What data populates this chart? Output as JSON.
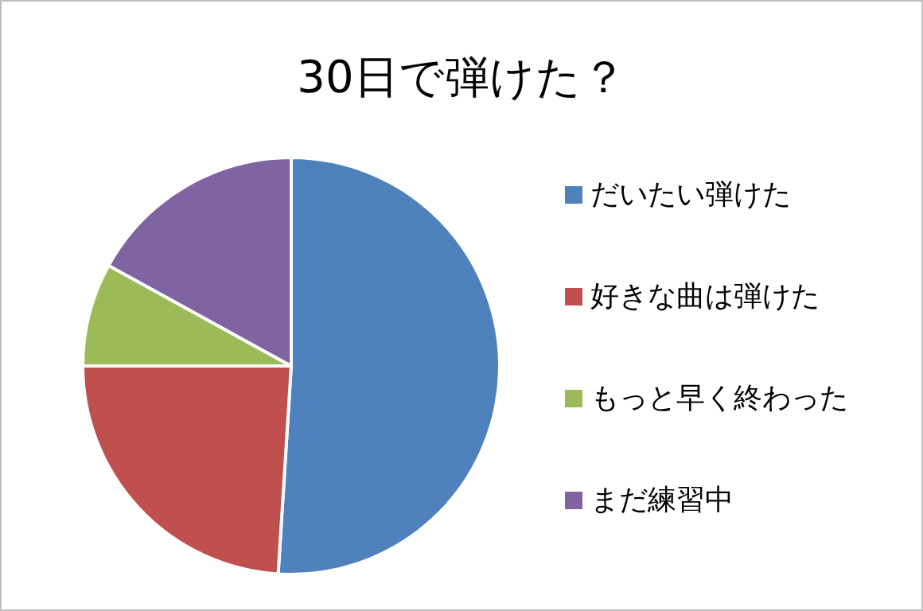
{
  "chart_data": {
    "type": "pie",
    "title": "30日で弾けた？",
    "categories": [
      "だいたい弾けた",
      "好きな曲は弾けた",
      "もっと早く終わった",
      "まだ練習中"
    ],
    "values": [
      51,
      24,
      8,
      17
    ],
    "colors": [
      "#4f81bd",
      "#c0504d",
      "#9bbb59",
      "#8064a2"
    ],
    "legend": "right"
  }
}
